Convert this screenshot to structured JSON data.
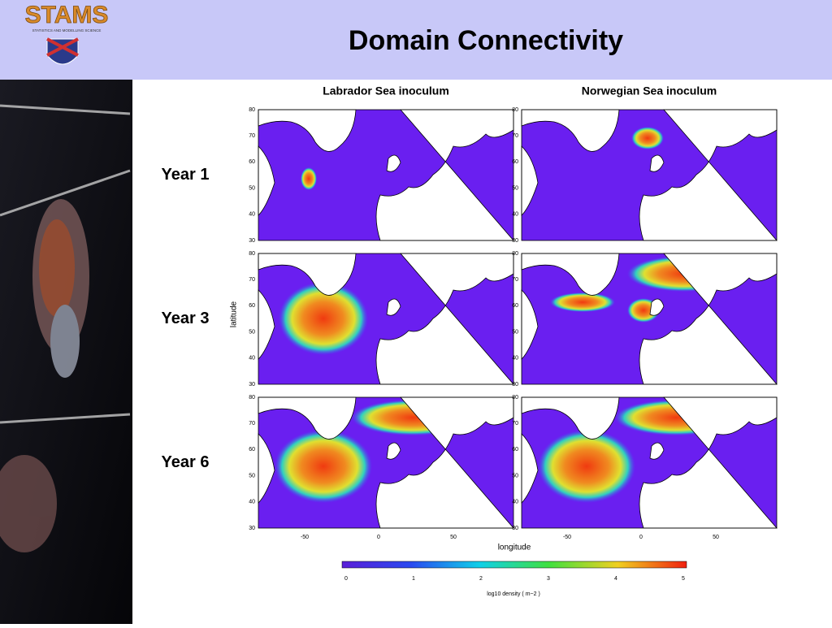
{
  "header": {
    "title": "Domain Connectivity",
    "logo_text": "STAMS",
    "logo_subtitle": "STATISTICS AND MODELLING SCIENCE"
  },
  "figure": {
    "columns": [
      "Labrador Sea inoculum",
      "Norwegian Sea inoculum"
    ],
    "rows": [
      "Year 1",
      "Year 3",
      "Year 6"
    ],
    "latitude_ticks": [
      80,
      70,
      60,
      50,
      40,
      30
    ],
    "longitude_ticks": [
      -50,
      0,
      50
    ],
    "x_label": "longitude",
    "y_label": "latitude",
    "colorbar_ticks": [
      0,
      1,
      2,
      3,
      4,
      5
    ],
    "colorbar_label": "log10 density ( m−2 )"
  }
}
